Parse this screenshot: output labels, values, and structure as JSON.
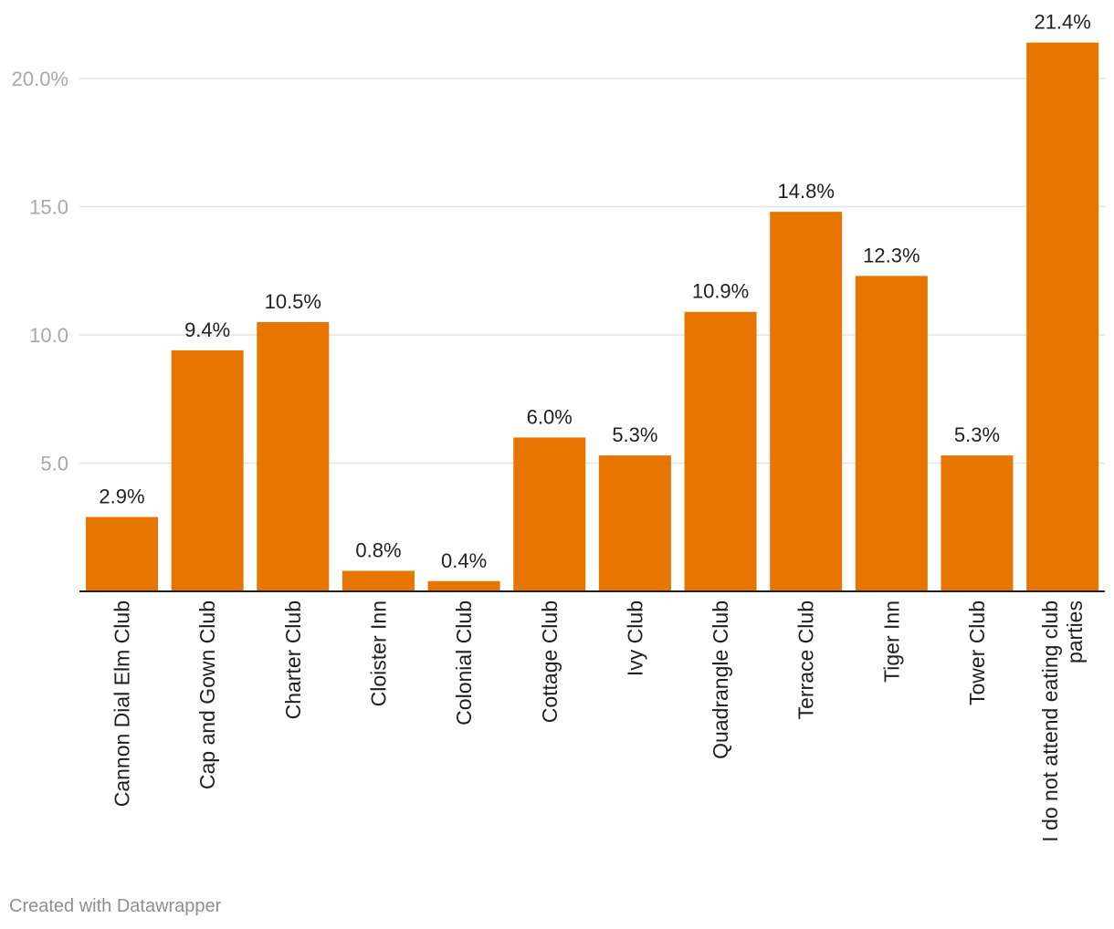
{
  "chart_data": {
    "type": "bar",
    "categories": [
      "Cannon Dial Elm Club",
      "Cap and Gown Club",
      "Charter Club",
      "Cloister Inn",
      "Colonial Club",
      "Cottage Club",
      "Ivy Club",
      "Quadrangle Club",
      "Terrace Club",
      "Tiger Inn",
      "Tower Club",
      "I do not attend eating club parties"
    ],
    "values": [
      2.9,
      9.4,
      10.5,
      0.8,
      0.4,
      6.0,
      5.3,
      10.9,
      14.8,
      12.3,
      5.3,
      21.4
    ],
    "value_labels": [
      "2.9%",
      "9.4%",
      "10.5%",
      "0.8%",
      "0.4%",
      "6.0%",
      "5.3%",
      "10.9%",
      "14.8%",
      "12.3%",
      "5.3%",
      "21.4%"
    ],
    "category_label_lines": [
      [
        "Cannon Dial Elm Club"
      ],
      [
        "Cap and Gown Club"
      ],
      [
        "Charter Club"
      ],
      [
        "Cloister Inn"
      ],
      [
        "Colonial Club"
      ],
      [
        "Cottage Club"
      ],
      [
        "Ivy Club"
      ],
      [
        "Quadrangle Club"
      ],
      [
        "Terrace Club"
      ],
      [
        "Tiger Inn"
      ],
      [
        "Tower Club"
      ],
      [
        "I do not attend eating club",
        "parties"
      ]
    ],
    "y_ticks": [
      5,
      10,
      15,
      20
    ],
    "y_tick_labels": [
      "5.0",
      "10.0",
      "15.0",
      "20.0%"
    ],
    "ylim": [
      0,
      22
    ],
    "grid": true,
    "bar_color": "#e87500",
    "title": "",
    "xlabel": "",
    "ylabel": ""
  },
  "footer": {
    "credit": "Created with Datawrapper"
  }
}
